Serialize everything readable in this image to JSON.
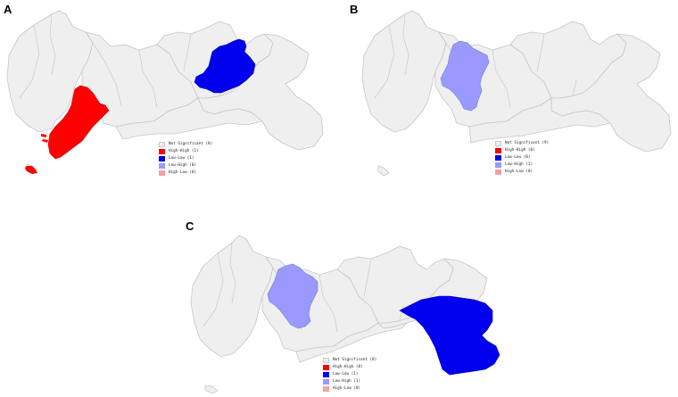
{
  "colors": {
    "not_significant": "#efefef",
    "high_high": "#ff0000",
    "low_low": "#0000ee",
    "low_high": "#9999ff",
    "high_low": "#f5a0a0",
    "background": "#ffffff"
  },
  "panels": [
    {
      "letter": "A",
      "legend": [
        {
          "label": "Not Significant (8)",
          "color": "#efefef"
        },
        {
          "label": "High-High (1)",
          "color": "#ff0000"
        },
        {
          "label": "Low-Low (1)",
          "color": "#0000ee"
        },
        {
          "label": "Low-High (0)",
          "color": "#9999ff"
        },
        {
          "label": "High-Low (0)",
          "color": "#f5a0a0"
        }
      ]
    },
    {
      "letter": "B",
      "legend": [
        {
          "label": "Not Significant (9)",
          "color": "#efefef"
        },
        {
          "label": "High-High (0)",
          "color": "#ff0000"
        },
        {
          "label": "Low-Low (0)",
          "color": "#0000ee"
        },
        {
          "label": "Low-High (1)",
          "color": "#9999ff"
        },
        {
          "label": "High-Low (0)",
          "color": "#f5a0a0"
        }
      ]
    },
    {
      "letter": "C",
      "legend": [
        {
          "label": "Not Significant (8)",
          "color": "#efefef"
        },
        {
          "label": "High-High (0)",
          "color": "#ff0000"
        },
        {
          "label": "Low-Low (1)",
          "color": "#0000ee"
        },
        {
          "label": "Low-High (1)",
          "color": "#9999ff"
        },
        {
          "label": "High-Low (0)",
          "color": "#f5a0a0"
        }
      ]
    }
  ]
}
